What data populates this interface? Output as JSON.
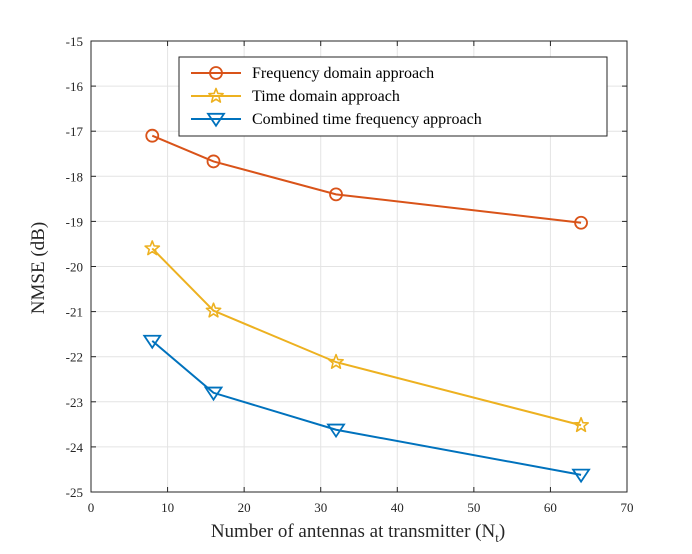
{
  "chart_data": {
    "type": "line",
    "title": "",
    "xlabel": "Number of antennas at transmitter (N",
    "xlabel_subscript": "t",
    "xlabel_close": ")",
    "ylabel": "NMSE (dB)",
    "xlim": [
      0,
      70
    ],
    "ylim": [
      -25,
      -15
    ],
    "xticks": [
      0,
      10,
      20,
      30,
      40,
      50,
      60,
      70
    ],
    "yticks": [
      -25,
      -24,
      -23,
      -22,
      -21,
      -20,
      -19,
      -18,
      -17,
      -16,
      -15
    ],
    "grid": true,
    "legend_position": "top-right",
    "series": [
      {
        "name": "Frequency domain approach",
        "color": "#D95319",
        "marker": "circle",
        "x": [
          8,
          16,
          32,
          64
        ],
        "y": [
          -17.1,
          -17.67,
          -18.4,
          -19.03
        ]
      },
      {
        "name": "Time domain approach",
        "color": "#EDB120",
        "marker": "star",
        "x": [
          8,
          16,
          32,
          64
        ],
        "y": [
          -19.6,
          -20.98,
          -22.12,
          -23.52
        ]
      },
      {
        "name": "Combined time frequency approach",
        "color": "#0072BD",
        "marker": "triangle-down",
        "x": [
          8,
          16,
          32,
          64
        ],
        "y": [
          -21.65,
          -22.8,
          -23.62,
          -24.62
        ]
      }
    ]
  }
}
